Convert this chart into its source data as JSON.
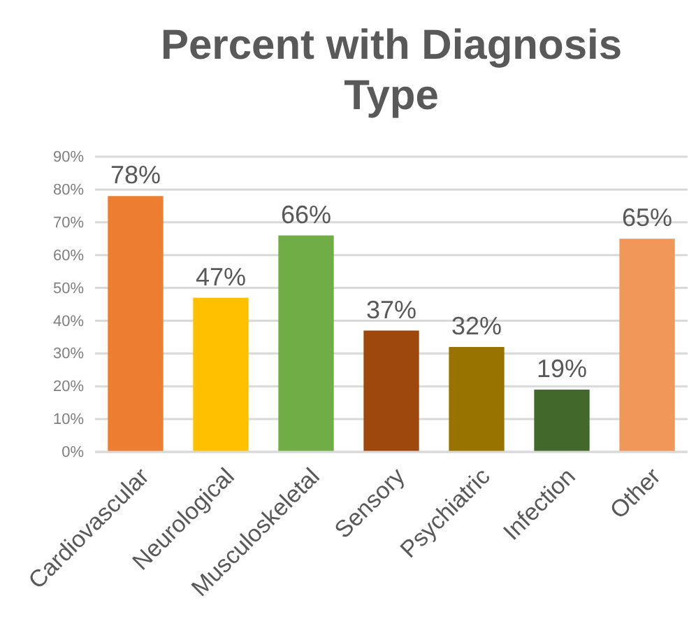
{
  "chart_data": {
    "type": "bar",
    "title": "Percent with Diagnosis Type",
    "categories": [
      "Cardiovascular",
      "Neurological",
      "Musculoskeletal",
      "Sensory",
      "Psychiatric",
      "Infection",
      "Other"
    ],
    "values": [
      78,
      47,
      66,
      37,
      32,
      19,
      65
    ],
    "value_labels": [
      "78%",
      "47%",
      "66%",
      "37%",
      "32%",
      "19%",
      "65%"
    ],
    "colors": [
      "#ed7d31",
      "#ffc000",
      "#70ad47",
      "#9e480e",
      "#997300",
      "#43682b",
      "#f1975a"
    ],
    "ylim": [
      0,
      90
    ],
    "yticks": [
      {
        "value": 0,
        "label": "0%"
      },
      {
        "value": 10,
        "label": "10%"
      },
      {
        "value": 20,
        "label": "20%"
      },
      {
        "value": 30,
        "label": "30%"
      },
      {
        "value": 40,
        "label": "40%"
      },
      {
        "value": 50,
        "label": "50%"
      },
      {
        "value": 60,
        "label": "60%"
      },
      {
        "value": 70,
        "label": "70%"
      },
      {
        "value": 80,
        "label": "80%"
      },
      {
        "value": 90,
        "label": "90%"
      }
    ],
    "grid": "y"
  }
}
